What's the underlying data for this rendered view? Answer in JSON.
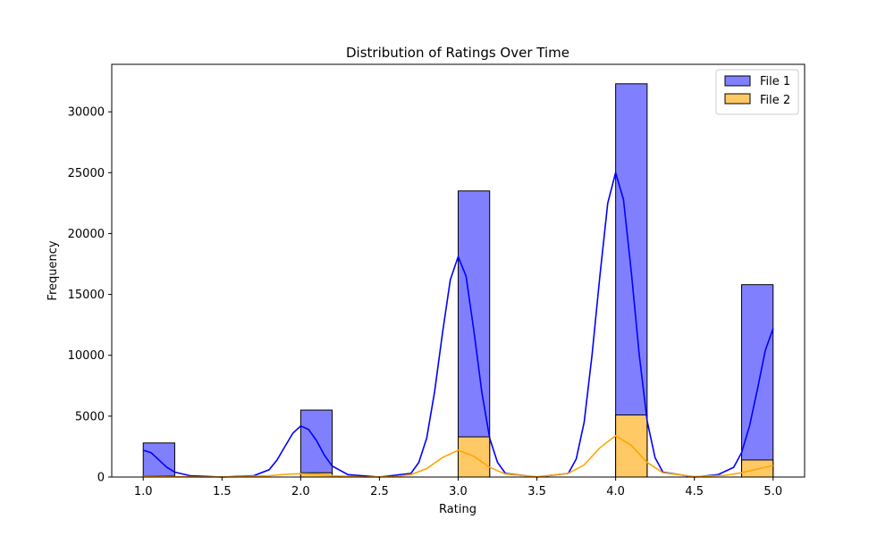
{
  "chart_data": {
    "type": "bar",
    "title": "Distribution of Ratings Over Time",
    "xlabel": "Rating",
    "ylabel": "Frequency",
    "xlim": [
      0.8,
      5.2
    ],
    "ylim": [
      0,
      33900
    ],
    "xticks": [
      "1.0",
      "1.5",
      "2.0",
      "2.5",
      "3.0",
      "3.5",
      "4.0",
      "4.5",
      "5.0"
    ],
    "xtick_values": [
      1.0,
      1.5,
      2.0,
      2.5,
      3.0,
      3.5,
      4.0,
      4.5,
      5.0
    ],
    "yticks": [
      "0",
      "5000",
      "10000",
      "15000",
      "20000",
      "25000",
      "30000"
    ],
    "ytick_values": [
      0,
      5000,
      10000,
      15000,
      20000,
      25000,
      30000
    ],
    "bin_width": 0.2,
    "legend_position": "top-right",
    "grid": false,
    "series": [
      {
        "name": "File 1",
        "fill_color": "#8080ff",
        "line_color": "#0000ff",
        "bins": [
          {
            "x": 1.0,
            "value": 2800
          },
          {
            "x": 2.0,
            "value": 5500
          },
          {
            "x": 3.0,
            "value": 23500
          },
          {
            "x": 4.0,
            "value": 32300
          },
          {
            "x": 4.8,
            "value": 15800
          }
        ],
        "kde": [
          [
            1.0,
            2200
          ],
          [
            1.05,
            2000
          ],
          [
            1.1,
            1400
          ],
          [
            1.15,
            800
          ],
          [
            1.2,
            400
          ],
          [
            1.3,
            100
          ],
          [
            1.5,
            0
          ],
          [
            1.7,
            100
          ],
          [
            1.8,
            600
          ],
          [
            1.85,
            1400
          ],
          [
            1.9,
            2500
          ],
          [
            1.95,
            3600
          ],
          [
            2.0,
            4200
          ],
          [
            2.05,
            3900
          ],
          [
            2.1,
            3000
          ],
          [
            2.15,
            1800
          ],
          [
            2.2,
            900
          ],
          [
            2.3,
            200
          ],
          [
            2.5,
            0
          ],
          [
            2.7,
            300
          ],
          [
            2.75,
            1200
          ],
          [
            2.8,
            3200
          ],
          [
            2.85,
            7000
          ],
          [
            2.9,
            11800
          ],
          [
            2.95,
            16200
          ],
          [
            3.0,
            18100
          ],
          [
            3.05,
            16500
          ],
          [
            3.1,
            12000
          ],
          [
            3.15,
            7000
          ],
          [
            3.2,
            3200
          ],
          [
            3.25,
            1200
          ],
          [
            3.3,
            300
          ],
          [
            3.5,
            0
          ],
          [
            3.7,
            300
          ],
          [
            3.75,
            1500
          ],
          [
            3.8,
            4500
          ],
          [
            3.85,
            10000
          ],
          [
            3.9,
            16500
          ],
          [
            3.95,
            22500
          ],
          [
            4.0,
            25000
          ],
          [
            4.05,
            22800
          ],
          [
            4.1,
            16800
          ],
          [
            4.15,
            10000
          ],
          [
            4.2,
            4600
          ],
          [
            4.25,
            1600
          ],
          [
            4.3,
            400
          ],
          [
            4.5,
            0
          ],
          [
            4.65,
            200
          ],
          [
            4.75,
            800
          ],
          [
            4.8,
            2000
          ],
          [
            4.85,
            4200
          ],
          [
            4.9,
            7200
          ],
          [
            4.95,
            10400
          ],
          [
            5.0,
            12200
          ]
        ]
      },
      {
        "name": "File 2",
        "fill_color": "#ffc966",
        "line_color": "#ffa500",
        "bins": [
          {
            "x": 1.0,
            "value": 100
          },
          {
            "x": 2.0,
            "value": 350
          },
          {
            "x": 3.0,
            "value": 3300
          },
          {
            "x": 4.0,
            "value": 5100
          },
          {
            "x": 4.8,
            "value": 1400
          }
        ],
        "kde": [
          [
            1.0,
            60
          ],
          [
            1.2,
            30
          ],
          [
            1.4,
            10
          ],
          [
            1.6,
            20
          ],
          [
            1.8,
            100
          ],
          [
            1.9,
            220
          ],
          [
            2.0,
            280
          ],
          [
            2.1,
            220
          ],
          [
            2.2,
            100
          ],
          [
            2.4,
            10
          ],
          [
            2.6,
            40
          ],
          [
            2.7,
            200
          ],
          [
            2.8,
            700
          ],
          [
            2.9,
            1600
          ],
          [
            3.0,
            2200
          ],
          [
            3.1,
            1700
          ],
          [
            3.2,
            800
          ],
          [
            3.3,
            250
          ],
          [
            3.5,
            20
          ],
          [
            3.7,
            300
          ],
          [
            3.8,
            1000
          ],
          [
            3.9,
            2400
          ],
          [
            4.0,
            3400
          ],
          [
            4.1,
            2600
          ],
          [
            4.2,
            1200
          ],
          [
            4.3,
            350
          ],
          [
            4.5,
            40
          ],
          [
            4.7,
            150
          ],
          [
            4.8,
            350
          ],
          [
            4.9,
            650
          ],
          [
            5.0,
            950
          ]
        ]
      }
    ]
  }
}
